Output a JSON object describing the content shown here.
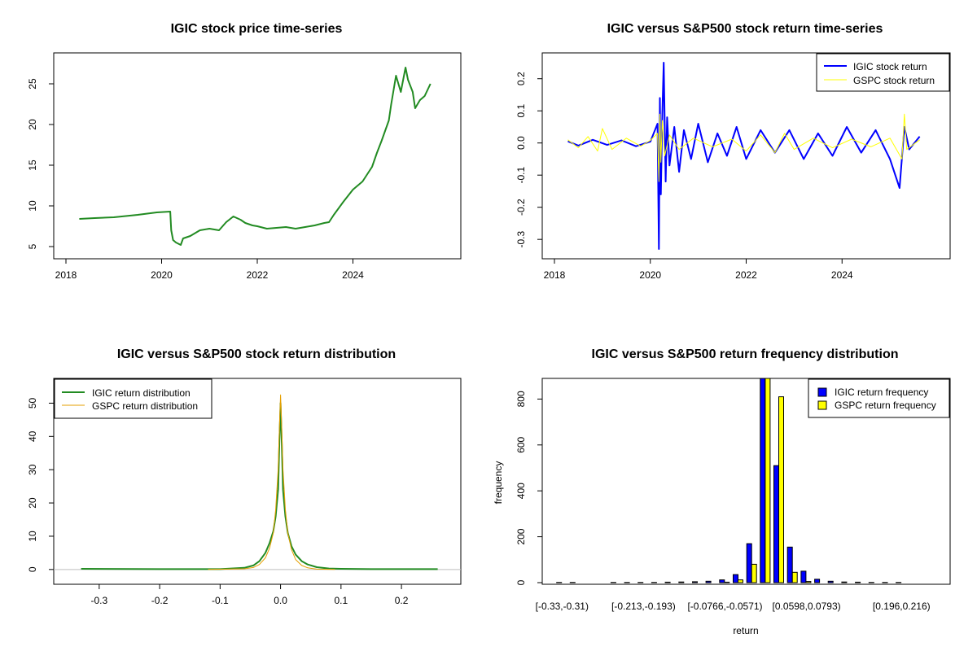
{
  "colors": {
    "igic_price": "#228B22",
    "igic_return": "#0000FF",
    "gspc_return": "#FFFF00",
    "igic_density": "#228B22",
    "gspc_density": "#E69F00",
    "axis": "#000000",
    "zero_line": "#BEBEBE"
  },
  "chart_data": [
    {
      "type": "line",
      "title": "IGIC stock price time-series",
      "xlabel": "",
      "ylabel": "",
      "xlim": [
        2018,
        2026
      ],
      "ylim": [
        4.5,
        27.8
      ],
      "xticks": [
        2018,
        2020,
        2022,
        2024
      ],
      "xtick_labels": [
        "2018",
        "2020",
        "2022",
        "2024"
      ],
      "yticks": [
        5,
        10,
        15,
        20,
        25
      ],
      "ytick_labels": [
        "5",
        "10",
        "15",
        "20",
        "25"
      ],
      "series": [
        {
          "name": "IGIC stock price",
          "color_key": "igic_price",
          "x": [
            2018.28,
            2018.6,
            2019.0,
            2019.5,
            2019.9,
            2020.18,
            2020.2,
            2020.24,
            2020.3,
            2020.4,
            2020.45,
            2020.6,
            2020.8,
            2021.0,
            2021.2,
            2021.35,
            2021.5,
            2021.65,
            2021.75,
            2021.9,
            2022.0,
            2022.2,
            2022.4,
            2022.6,
            2022.8,
            2023.0,
            2023.2,
            2023.4,
            2023.5,
            2023.6,
            2023.8,
            2024.0,
            2024.2,
            2024.4,
            2024.5,
            2024.6,
            2024.75,
            2024.8,
            2024.9,
            2025.0,
            2025.1,
            2025.15,
            2025.25,
            2025.3,
            2025.4,
            2025.5,
            2025.62
          ],
          "values": [
            8.4,
            8.5,
            8.6,
            8.9,
            9.2,
            9.3,
            7.0,
            5.8,
            5.5,
            5.2,
            6.0,
            6.3,
            7.0,
            7.2,
            7.0,
            8.0,
            8.7,
            8.3,
            7.9,
            7.6,
            7.5,
            7.2,
            7.3,
            7.4,
            7.2,
            7.4,
            7.6,
            7.9,
            8.0,
            8.9,
            10.5,
            12.0,
            13.0,
            14.8,
            16.5,
            18.0,
            20.5,
            22.5,
            26.0,
            24.0,
            27.0,
            25.5,
            24.0,
            22.0,
            23.0,
            23.5,
            25.0
          ]
        }
      ]
    },
    {
      "type": "line",
      "title": "IGIC versus S&P500 stock return time-series",
      "xlabel": "",
      "ylabel": "",
      "xlim": [
        2018,
        2026
      ],
      "ylim": [
        -0.335,
        0.255
      ],
      "xticks": [
        2018,
        2020,
        2022,
        2024
      ],
      "xtick_labels": [
        "2018",
        "2020",
        "2022",
        "2024"
      ],
      "yticks": [
        -0.3,
        -0.2,
        -0.1,
        0.0,
        0.1,
        0.2
      ],
      "ytick_labels": [
        "-0.3",
        "-0.2",
        "-0.1",
        "0.0",
        "0.1",
        "0.2"
      ],
      "legend": {
        "position": "top-right",
        "entries": [
          {
            "label": "IGIC stock return",
            "color_key": "igic_return"
          },
          {
            "label": "GSPC stock return",
            "color_key": "gspc_return"
          }
        ]
      },
      "series": [
        {
          "name": "IGIC stock return",
          "color_key": "igic_return",
          "x": [
            2018.28,
            2018.5,
            2018.8,
            2019.1,
            2019.4,
            2019.7,
            2020.0,
            2020.15,
            2020.18,
            2020.2,
            2020.22,
            2020.25,
            2020.28,
            2020.32,
            2020.35,
            2020.4,
            2020.5,
            2020.6,
            2020.7,
            2020.85,
            2021.0,
            2021.2,
            2021.4,
            2021.6,
            2021.8,
            2022.0,
            2022.3,
            2022.6,
            2022.9,
            2023.2,
            2023.5,
            2023.8,
            2024.1,
            2024.4,
            2024.7,
            2025.0,
            2025.2,
            2025.3,
            2025.4,
            2025.62
          ],
          "values": [
            0.005,
            -0.008,
            0.01,
            -0.006,
            0.008,
            -0.01,
            0.004,
            0.06,
            -0.33,
            0.14,
            -0.16,
            0.09,
            0.25,
            -0.12,
            0.08,
            -0.07,
            0.05,
            -0.09,
            0.04,
            -0.05,
            0.06,
            -0.06,
            0.03,
            -0.04,
            0.05,
            -0.05,
            0.04,
            -0.03,
            0.04,
            -0.05,
            0.03,
            -0.04,
            0.05,
            -0.03,
            0.04,
            -0.05,
            -0.14,
            0.05,
            -0.02,
            0.02
          ]
        },
        {
          "name": "GSPC stock return",
          "color_key": "gspc_return",
          "x": [
            2018.28,
            2018.5,
            2018.7,
            2018.9,
            2019.0,
            2019.2,
            2019.5,
            2019.8,
            2020.0,
            2020.15,
            2020.18,
            2020.2,
            2020.22,
            2020.25,
            2020.3,
            2020.4,
            2020.6,
            2020.9,
            2021.3,
            2021.7,
            2022.0,
            2022.3,
            2022.6,
            2022.8,
            2023.0,
            2023.4,
            2023.8,
            2024.2,
            2024.6,
            2025.0,
            2025.25,
            2025.3,
            2025.35,
            2025.62
          ],
          "values": [
            0.01,
            -0.015,
            0.02,
            -0.025,
            0.045,
            -0.02,
            0.015,
            -0.01,
            0.008,
            0.03,
            -0.12,
            0.09,
            -0.06,
            0.07,
            -0.04,
            0.025,
            -0.02,
            0.015,
            -0.012,
            0.012,
            -0.025,
            0.025,
            -0.03,
            0.03,
            -0.02,
            0.015,
            -0.015,
            0.012,
            -0.012,
            0.015,
            -0.05,
            0.09,
            -0.02,
            0.01
          ]
        }
      ]
    },
    {
      "type": "line",
      "title": "IGIC versus S&P500 stock return distribution",
      "xlabel": "",
      "ylabel": "",
      "xlim": [
        -0.355,
        0.278
      ],
      "ylim": [
        -2,
        55
      ],
      "xticks": [
        -0.3,
        -0.2,
        -0.1,
        0.0,
        0.1,
        0.2
      ],
      "xtick_labels": [
        "-0.3",
        "-0.2",
        "-0.1",
        "0.0",
        "0.1",
        "0.2"
      ],
      "yticks": [
        0,
        10,
        20,
        30,
        40,
        50
      ],
      "ytick_labels": [
        "0",
        "10",
        "20",
        "30",
        "40",
        "50"
      ],
      "legend": {
        "position": "top-left",
        "entries": [
          {
            "label": "IGIC return distribution",
            "color_key": "igic_density"
          },
          {
            "label": "GSPC return distribution",
            "color_key": "gspc_density"
          }
        ]
      },
      "series": [
        {
          "name": "IGIC return distribution",
          "color_key": "igic_density",
          "x": [
            -0.33,
            -0.2,
            -0.1,
            -0.06,
            -0.045,
            -0.035,
            -0.025,
            -0.018,
            -0.012,
            -0.008,
            -0.004,
            -0.002,
            0.0,
            0.002,
            0.004,
            0.008,
            0.012,
            0.018,
            0.025,
            0.035,
            0.045,
            0.06,
            0.08,
            0.1,
            0.15,
            0.2,
            0.26
          ],
          "values": [
            0.2,
            0.1,
            0.1,
            0.5,
            1.2,
            2.5,
            5.0,
            8.0,
            11.5,
            16.0,
            24.0,
            38.0,
            50.0,
            38.0,
            24.0,
            16.0,
            11.0,
            7.0,
            4.5,
            2.5,
            1.5,
            0.7,
            0.3,
            0.2,
            0.1,
            0.1,
            0.1
          ]
        },
        {
          "name": "GSPC return distribution",
          "color_key": "gspc_density",
          "x": [
            -0.12,
            -0.06,
            -0.045,
            -0.035,
            -0.025,
            -0.018,
            -0.012,
            -0.008,
            -0.004,
            -0.002,
            0.0,
            0.002,
            0.004,
            0.008,
            0.012,
            0.018,
            0.025,
            0.035,
            0.045,
            0.06,
            0.09
          ],
          "values": [
            0.0,
            0.2,
            0.6,
            1.5,
            3.5,
            6.5,
            11.0,
            18.0,
            30.0,
            42.0,
            52.5,
            42.0,
            30.0,
            18.0,
            11.0,
            6.0,
            3.0,
            1.2,
            0.5,
            0.1,
            0.0
          ]
        }
      ]
    },
    {
      "type": "bar",
      "title": "IGIC versus S&P500 return frequency distribution",
      "xlabel": "return",
      "ylabel": "frequency",
      "ylim": [
        0,
        890
      ],
      "yticks": [
        0,
        200,
        400,
        600,
        800
      ],
      "ytick_labels": [
        "0",
        "200",
        "400",
        "600",
        "800"
      ],
      "categories": [
        "[-0.33,-0.31)",
        "",
        "",
        "",
        "",
        "",
        "[-0.213,-0.193)",
        "",
        "",
        "",
        "",
        "",
        "[-0.0766,-0.0571)",
        "",
        "",
        "",
        "",
        "",
        "[0.0598,0.0793)",
        "",
        "",
        "",
        "",
        "",
        "",
        "[0.196,0.216)",
        "",
        ""
      ],
      "visible_category_labels": [
        "[-0.33,-0.31)",
        "[-0.213,-0.193)",
        "[-0.0766,-0.0571)",
        "[0.0598,0.0793)",
        "[0.196,0.216)"
      ],
      "legend": {
        "position": "top-right",
        "entries": [
          {
            "label": "IGIC return frequency",
            "color_key": "igic_return"
          },
          {
            "label": "GSPC return frequency",
            "color_key": "gspc_return"
          }
        ]
      },
      "series": [
        {
          "name": "IGIC return frequency",
          "color_key": "igic_return",
          "values": [
            1,
            1,
            0,
            0,
            1,
            1,
            1,
            1,
            2,
            3,
            4,
            6,
            12,
            35,
            170,
            900,
            510,
            155,
            50,
            15,
            6,
            3,
            2,
            1,
            1,
            1,
            0,
            0
          ]
        },
        {
          "name": "GSPC return frequency",
          "color_key": "gspc_return",
          "values": [
            0,
            0,
            0,
            0,
            0,
            0,
            0,
            0,
            0,
            0,
            0,
            0,
            2,
            12,
            80,
            890,
            810,
            45,
            5,
            0,
            0,
            0,
            0,
            0,
            0,
            0,
            0,
            0
          ]
        }
      ]
    }
  ]
}
